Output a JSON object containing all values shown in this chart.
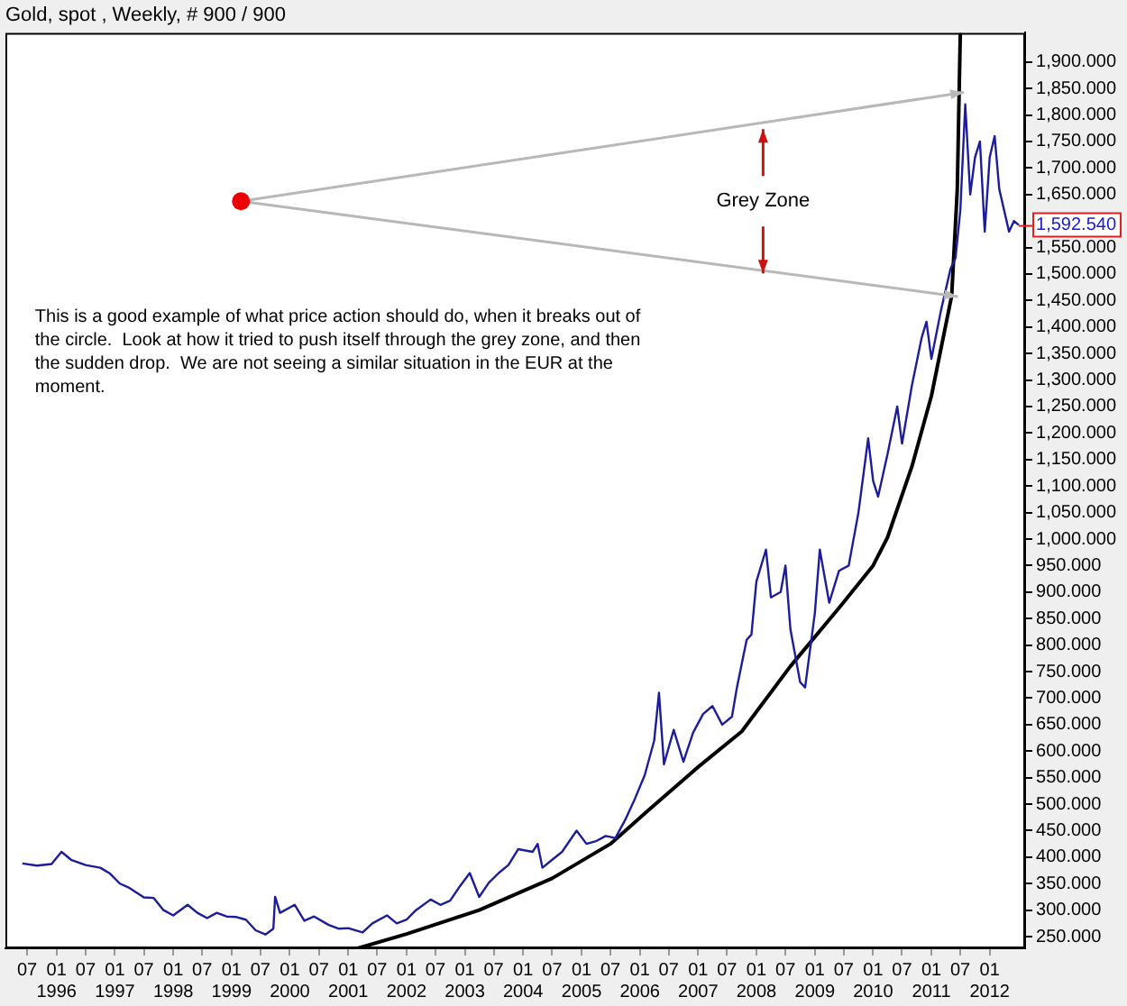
{
  "chart_data": {
    "type": "line",
    "title": "Gold, spot , Weekly, # 900 / 900",
    "x": [
      "1995-06",
      "1995-09",
      "1995-12",
      "1996-02",
      "1996-04",
      "1996-07",
      "1996-10",
      "1996-12",
      "1997-02",
      "1997-04",
      "1997-07",
      "1997-09",
      "1997-11",
      "1998-01",
      "1998-04",
      "1998-06",
      "1998-08",
      "1998-10",
      "1998-12",
      "1999-02",
      "1999-04",
      "1999-06",
      "1999-08",
      "1999-09-20",
      "1999-10",
      "1999-11",
      "2000-02",
      "2000-04",
      "2000-06",
      "2000-09",
      "2000-11",
      "2001-01",
      "2001-04",
      "2001-06",
      "2001-09",
      "2001-11",
      "2002-01",
      "2002-03",
      "2002-06",
      "2002-08",
      "2002-10",
      "2002-12",
      "2003-02",
      "2003-04",
      "2003-06",
      "2003-08",
      "2003-10",
      "2003-12",
      "2004-03",
      "2004-04",
      "2004-05",
      "2004-07",
      "2004-09",
      "2004-12",
      "2005-02",
      "2005-04",
      "2005-06",
      "2005-08",
      "2005-10",
      "2005-12",
      "2006-02",
      "2006-04",
      "2006-05",
      "2006-06",
      "2006-08",
      "2006-10",
      "2006-12",
      "2007-02",
      "2007-04",
      "2007-06",
      "2007-08",
      "2007-09",
      "2007-11",
      "2007-12",
      "2008-01",
      "2008-03",
      "2008-04",
      "2008-06",
      "2008-07",
      "2008-08",
      "2008-10",
      "2008-11",
      "2009-01",
      "2009-02",
      "2009-04",
      "2009-06",
      "2009-08",
      "2009-10",
      "2009-12",
      "2010-01",
      "2010-02",
      "2010-04",
      "2010-06",
      "2010-07",
      "2010-09",
      "2010-11",
      "2010-12",
      "2011-01",
      "2011-03",
      "2011-05",
      "2011-06",
      "2011-07",
      "2011-08",
      "2011-09",
      "2011-10",
      "2011-11",
      "2011-12",
      "2012-01",
      "2012-02",
      "2012-03",
      "2012-05",
      "2012-06",
      "2012-07"
    ],
    "series": [
      {
        "color": "#1c1c9c",
        "values": [
          388,
          384,
          387,
          410,
          395,
          385,
          380,
          369,
          350,
          342,
          324,
          323,
          300,
          290,
          310,
          295,
          285,
          295,
          288,
          287,
          282,
          262,
          254,
          265,
          325,
          295,
          310,
          280,
          288,
          272,
          265,
          266,
          258,
          275,
          290,
          275,
          282,
          300,
          320,
          310,
          318,
          345,
          370,
          325,
          352,
          370,
          385,
          415,
          410,
          425,
          380,
          395,
          410,
          450,
          425,
          430,
          440,
          436,
          470,
          510,
          555,
          620,
          710,
          575,
          640,
          580,
          635,
          670,
          685,
          650,
          665,
          720,
          810,
          820,
          920,
          980,
          890,
          900,
          950,
          830,
          730,
          720,
          860,
          980,
          880,
          940,
          950,
          1050,
          1190,
          1110,
          1080,
          1160,
          1250,
          1180,
          1290,
          1380,
          1410,
          1340,
          1430,
          1510,
          1530,
          1620,
          1820,
          1650,
          1720,
          1750,
          1580,
          1720,
          1760,
          1660,
          1580,
          1600,
          1592.54
        ]
      },
      {
        "type": "line",
        "color": "#000000",
        "x": [
          "2001-03",
          "2002-01",
          "2003-04",
          "2004-07",
          "2005-07",
          "2006-03",
          "2007-01",
          "2007-10",
          "2008-08",
          "2009-06",
          "2010-01",
          "2010-04",
          "2010-09",
          "2011-01",
          "2011-05-08",
          "2011-06-12",
          "2011-07-01"
        ],
        "values": [
          228,
          255,
          300,
          360,
          425,
          490,
          570,
          637,
          760,
          870,
          950,
          1003,
          1137,
          1270,
          1459,
          1659,
          1955
        ]
      }
    ],
    "xlim": [
      "1995-02-15",
      "2012-08-10"
    ],
    "xticks": [
      {
        "value": "1995-07",
        "label": "07"
      },
      {
        "value": "1996-01",
        "label": "01\n1996"
      },
      {
        "value": "1996-07",
        "label": "07"
      },
      {
        "value": "1997-01",
        "label": "01\n1997"
      },
      {
        "value": "1997-07",
        "label": "07"
      },
      {
        "value": "1998-01",
        "label": "01\n1998"
      },
      {
        "value": "1998-07",
        "label": "07"
      },
      {
        "value": "1999-01",
        "label": "01\n1999"
      },
      {
        "value": "1999-07",
        "label": "07"
      },
      {
        "value": "2000-01",
        "label": "01\n2000"
      },
      {
        "value": "2000-07",
        "label": "07"
      },
      {
        "value": "2001-01",
        "label": "01\n2001"
      },
      {
        "value": "2001-07",
        "label": "07"
      },
      {
        "value": "2002-01",
        "label": "01\n2002"
      },
      {
        "value": "2002-07",
        "label": "07"
      },
      {
        "value": "2003-01",
        "label": "01\n2003"
      },
      {
        "value": "2003-07",
        "label": "07"
      },
      {
        "value": "2004-01",
        "label": "01\n2004"
      },
      {
        "value": "2004-07",
        "label": "07"
      },
      {
        "value": "2005-01",
        "label": "01\n2005"
      },
      {
        "value": "2005-07",
        "label": "07"
      },
      {
        "value": "2006-01",
        "label": "01\n2006"
      },
      {
        "value": "2006-07",
        "label": "07"
      },
      {
        "value": "2007-01",
        "label": "01\n2007"
      },
      {
        "value": "2007-07",
        "label": "07"
      },
      {
        "value": "2008-01",
        "label": "01\n2008"
      },
      {
        "value": "2008-07",
        "label": "07"
      },
      {
        "value": "2009-01",
        "label": "01\n2009"
      },
      {
        "value": "2009-07",
        "label": "07"
      },
      {
        "value": "2010-01",
        "label": "01\n2010"
      },
      {
        "value": "2010-07",
        "label": "07"
      },
      {
        "value": "2011-01",
        "label": "01\n2011"
      },
      {
        "value": "2011-07",
        "label": "07"
      },
      {
        "value": "2012-01",
        "label": "01\n2012"
      }
    ],
    "ylim": [
      228,
      1955
    ],
    "yticks": [
      {
        "value": 250,
        "label": "250.000"
      },
      {
        "value": 300,
        "label": "300.000"
      },
      {
        "value": 350,
        "label": "350.000"
      },
      {
        "value": 400,
        "label": "400.000"
      },
      {
        "value": 450,
        "label": "450.000"
      },
      {
        "value": 500,
        "label": "500.000"
      },
      {
        "value": 550,
        "label": "550.000"
      },
      {
        "value": 600,
        "label": "600.000"
      },
      {
        "value": 650,
        "label": "650.000"
      },
      {
        "value": 700,
        "label": "700.000"
      },
      {
        "value": 750,
        "label": "750.000"
      },
      {
        "value": 800,
        "label": "800.000"
      },
      {
        "value": 850,
        "label": "850.000"
      },
      {
        "value": 900,
        "label": "900.000"
      },
      {
        "value": 950,
        "label": "950.000"
      },
      {
        "value": 1000,
        "label": "1,000.000"
      },
      {
        "value": 1050,
        "label": "1,050.000"
      },
      {
        "value": 1100,
        "label": "1,100.000"
      },
      {
        "value": 1150,
        "label": "1,150.000"
      },
      {
        "value": 1200,
        "label": "1,200.000"
      },
      {
        "value": 1250,
        "label": "1,250.000"
      },
      {
        "value": 1300,
        "label": "1,300.000"
      },
      {
        "value": 1350,
        "label": "1,350.000"
      },
      {
        "value": 1400,
        "label": "1,400.000"
      },
      {
        "value": 1450,
        "label": "1,450.000"
      },
      {
        "value": 1500,
        "label": "1,500.000"
      },
      {
        "value": 1550,
        "label": "1,550.000"
      },
      {
        "value": 1650,
        "label": "1,650.000"
      },
      {
        "value": 1700,
        "label": "1,700.000"
      },
      {
        "value": 1750,
        "label": "1,750.000"
      },
      {
        "value": 1800,
        "label": "1,800.000"
      },
      {
        "value": 1850,
        "label": "1,850.000"
      },
      {
        "value": 1900,
        "label": "1,900.000"
      }
    ],
    "annotations": [
      "Grey Zone",
      "This is a good example of what price action should do, when it breaks out of the circle.  Look at how it tried to push itself through the grey zone, and then the sudden drop.  We are not seeing a similar situation in the EUR at the moment.",
      {
        "text": "1,592.540",
        "x": "2012-07",
        "y": 1592.54
      }
    ],
    "marker": "none",
    "line_style": "solid",
    "grid": false,
    "legend": false
  }
}
